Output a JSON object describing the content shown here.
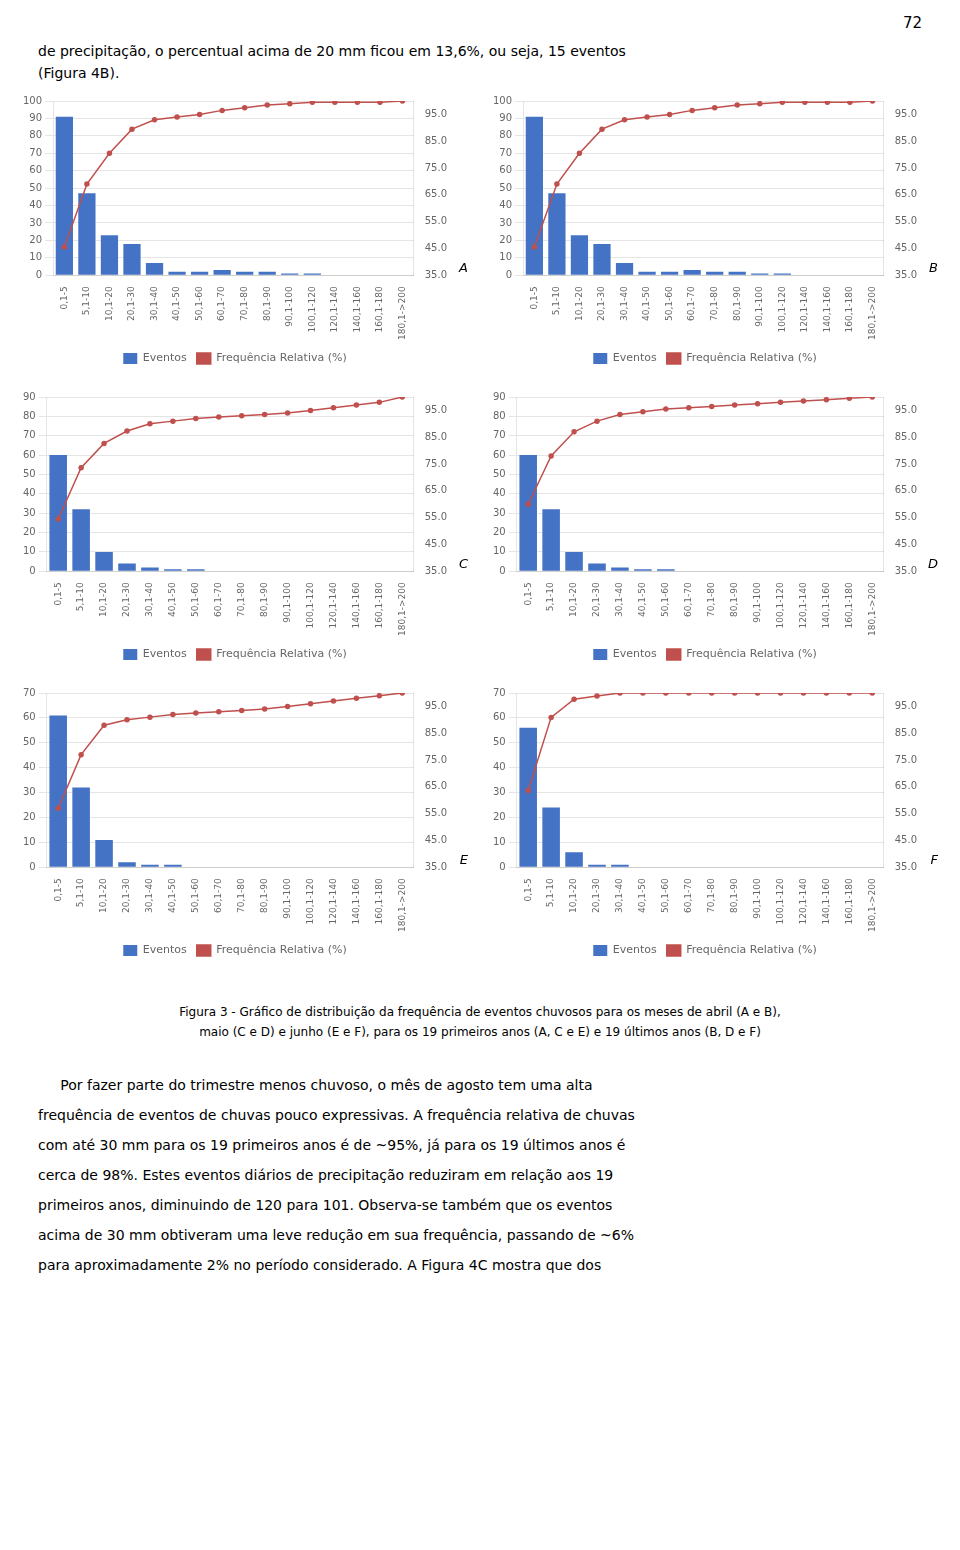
{
  "page_number": "72",
  "text_before": [
    "de precipitação, o percentual acima de 20 mm ficou em 13,6%, ou seja, 15 eventos",
    "(Figura 4B)."
  ],
  "chart_data": [
    {
      "type": "bar",
      "annotations": [
        "A"
      ],
      "categories": [
        "0,1-5",
        "5,1-10",
        "10,1-20",
        "20,1-30",
        "30,1-40",
        "40,1-50",
        "50,1-60",
        "60,1-70",
        "70,1-80",
        "80,1-90",
        "90,1-100",
        "100,1-120",
        "120,1-140",
        "140,1-160",
        "160,1-180",
        "180,1->200"
      ],
      "series": [
        {
          "name": "Eventos",
          "type": "bar",
          "color": "#4472C4",
          "values": [
            91,
            47,
            23,
            18,
            7,
            2,
            2,
            3,
            2,
            2,
            1,
            1,
            0,
            0,
            0,
            0
          ]
        },
        {
          "name": "Frequência Relativa (%)",
          "type": "line",
          "color": "#C0504D",
          "axis": "y2",
          "values": [
            45.5,
            69.0,
            80.5,
            89.5,
            93.0,
            94.0,
            95.0,
            96.5,
            97.5,
            98.5,
            99.0,
            99.5,
            99.5,
            99.5,
            99.5,
            100
          ]
        }
      ],
      "ylim": [
        0,
        100
      ],
      "yticks": [
        0,
        10,
        20,
        30,
        40,
        50,
        60,
        70,
        80,
        90,
        100
      ],
      "y2lim": [
        35,
        100
      ],
      "y2ticks": [
        {
          "value": 35,
          "label": "35.0"
        },
        {
          "value": 45,
          "label": "45.0"
        },
        {
          "value": 55,
          "label": "55.0"
        },
        {
          "value": 65,
          "label": "65.0"
        },
        {
          "value": 75,
          "label": "75.0"
        },
        {
          "value": 85,
          "label": "85.0"
        },
        {
          "value": 95,
          "label": "95.0"
        }
      ],
      "grid": true,
      "legend": "bottom"
    },
    {
      "type": "bar",
      "annotations": [
        "B"
      ],
      "categories": [
        "0,1-5",
        "5,1-10",
        "10,1-20",
        "20,1-30",
        "30,1-40",
        "40,1-50",
        "50,1-60",
        "60,1-70",
        "70,1-80",
        "80,1-90",
        "90,1-100",
        "100,1-120",
        "120,1-140",
        "140,1-160",
        "160,1-180",
        "180,1->200"
      ],
      "series": [
        {
          "name": "Eventos",
          "type": "bar",
          "color": "#4472C4",
          "values": [
            91,
            47,
            23,
            18,
            7,
            2,
            2,
            3,
            2,
            2,
            1,
            1,
            0,
            0,
            0,
            0
          ]
        },
        {
          "name": "Frequência Relativa (%)",
          "type": "line",
          "color": "#C0504D",
          "axis": "y2",
          "values": [
            45.5,
            69.0,
            80.5,
            89.5,
            93.0,
            94.0,
            95.0,
            96.5,
            97.5,
            98.5,
            99.0,
            99.5,
            99.5,
            99.5,
            99.5,
            100
          ]
        }
      ],
      "ylim": [
        0,
        100
      ],
      "yticks": [
        0,
        10,
        20,
        30,
        40,
        50,
        60,
        70,
        80,
        90,
        100
      ],
      "y2lim": [
        35,
        100
      ],
      "y2ticks": [
        {
          "value": 35,
          "label": "35.0"
        },
        {
          "value": 45,
          "label": "45.0"
        },
        {
          "value": 55,
          "label": "55.0"
        },
        {
          "value": 65,
          "label": "65.0"
        },
        {
          "value": 75,
          "label": "75.0"
        },
        {
          "value": 85,
          "label": "85.0"
        },
        {
          "value": 95,
          "label": "95.0"
        }
      ],
      "grid": true,
      "legend": "bottom"
    },
    {
      "type": "bar",
      "annotations": [
        "C"
      ],
      "categories": [
        "0,1-5",
        "5,1-10",
        "10,1-20",
        "20,1-30",
        "30,1-40",
        "40,1-50",
        "50,1-60",
        "60,1-70",
        "70,1-80",
        "80,1-90",
        "90,1-100",
        "100,1-120",
        "120,1-140",
        "140,1-160",
        "160,1-180",
        "180,1->200"
      ],
      "series": [
        {
          "name": "Eventos",
          "type": "bar",
          "color": "#4472C4",
          "values": [
            60,
            32,
            10,
            4,
            2,
            1,
            1,
            0,
            0,
            0,
            0,
            0,
            0,
            0,
            0,
            0
          ]
        },
        {
          "name": "Frequência Relativa (%)",
          "type": "line",
          "color": "#C0504D",
          "axis": "y2",
          "values": [
            54.5,
            73.6,
            82.7,
            87.3,
            90.0,
            91.0,
            92.0,
            92.5,
            93.0,
            93.5,
            94.0,
            95.0,
            96.0,
            97.0,
            98.0,
            100
          ]
        }
      ],
      "ylim": [
        0,
        90
      ],
      "yticks": [
        0,
        10,
        20,
        30,
        40,
        50,
        60,
        70,
        80,
        90
      ],
      "y2lim": [
        35,
        100
      ],
      "y2ticks": [
        {
          "value": 35,
          "label": "35.0"
        },
        {
          "value": 45,
          "label": "45.0"
        },
        {
          "value": 55,
          "label": "55.0"
        },
        {
          "value": 65,
          "label": "65.0"
        },
        {
          "value": 75,
          "label": "75.0"
        },
        {
          "value": 85,
          "label": "85.0"
        },
        {
          "value": 95,
          "label": "95.0"
        }
      ],
      "grid": true,
      "legend": "bottom"
    },
    {
      "type": "bar",
      "annotations": [
        "D"
      ],
      "categories": [
        "0,1-5",
        "5,1-10",
        "10,1-20",
        "20,1-30",
        "30,1-40",
        "40,1-50",
        "50,1-60",
        "60,1-70",
        "70,1-80",
        "80,1-90",
        "90,1-100",
        "100,1-120",
        "120,1-140",
        "140,1-160",
        "160,1-180",
        "180,1->200"
      ],
      "series": [
        {
          "name": "Eventos",
          "type": "bar",
          "color": "#4472C4",
          "values": [
            60,
            32,
            10,
            4,
            2,
            1,
            1,
            0,
            0,
            0,
            0,
            0,
            0,
            0,
            0,
            0
          ]
        },
        {
          "name": "Frequência Relativa (%)",
          "type": "line",
          "color": "#C0504D",
          "axis": "y2",
          "values": [
            60.0,
            78.0,
            87.0,
            91.0,
            93.5,
            94.5,
            95.5,
            96.0,
            96.5,
            97.0,
            97.5,
            98.0,
            98.5,
            99.0,
            99.5,
            100
          ]
        }
      ],
      "ylim": [
        0,
        90
      ],
      "yticks": [
        0,
        10,
        20,
        30,
        40,
        50,
        60,
        70,
        80,
        90
      ],
      "y2lim": [
        35,
        100
      ],
      "y2ticks": [
        {
          "value": 35,
          "label": "35.0"
        },
        {
          "value": 45,
          "label": "45.0"
        },
        {
          "value": 55,
          "label": "55.0"
        },
        {
          "value": 65,
          "label": "65.0"
        },
        {
          "value": 75,
          "label": "75.0"
        },
        {
          "value": 85,
          "label": "85.0"
        },
        {
          "value": 95,
          "label": "95.0"
        }
      ],
      "grid": true,
      "legend": "bottom"
    },
    {
      "type": "bar",
      "annotations": [
        "E"
      ],
      "categories": [
        "0,1-5",
        "5,1-10",
        "10,1-20",
        "20,1-30",
        "30,1-40",
        "40,1-50",
        "50,1-60",
        "60,1-70",
        "70,1-80",
        "80,1-90",
        "90,1-100",
        "100,1-120",
        "120,1-140",
        "140,1-160",
        "160,1-180",
        "180,1->200"
      ],
      "series": [
        {
          "name": "Eventos",
          "type": "bar",
          "color": "#4472C4",
          "values": [
            61,
            32,
            11,
            2,
            1,
            1,
            0,
            0,
            0,
            0,
            0,
            0,
            0,
            0,
            0,
            0
          ]
        },
        {
          "name": "Frequência Relativa (%)",
          "type": "line",
          "color": "#C0504D",
          "axis": "y2",
          "values": [
            57.0,
            77.0,
            88.0,
            90.0,
            91.0,
            92.0,
            92.5,
            93.0,
            93.5,
            94.0,
            95.0,
            96.0,
            97.0,
            98.0,
            99.0,
            100
          ]
        }
      ],
      "ylim": [
        0,
        70
      ],
      "yticks": [
        0,
        10,
        20,
        30,
        40,
        50,
        60,
        70
      ],
      "y2lim": [
        35,
        100
      ],
      "y2ticks": [
        {
          "value": 35,
          "label": "35.0"
        },
        {
          "value": 45,
          "label": "45.0"
        },
        {
          "value": 55,
          "label": "55.0"
        },
        {
          "value": 65,
          "label": "65.0"
        },
        {
          "value": 75,
          "label": "75.0"
        },
        {
          "value": 85,
          "label": "85.0"
        },
        {
          "value": 95,
          "label": "95.0"
        }
      ],
      "grid": true,
      "legend": "bottom"
    },
    {
      "type": "bar",
      "annotations": [
        "F"
      ],
      "categories": [
        "0,1-5",
        "5,1-10",
        "10,1-20",
        "20,1-30",
        "30,1-40",
        "40,1-50",
        "50,1-60",
        "60,1-70",
        "70,1-80",
        "80,1-90",
        "90,1-100",
        "100,1-120",
        "120,1-140",
        "140,1-160",
        "160,1-180",
        "180,1->200"
      ],
      "series": [
        {
          "name": "Eventos",
          "type": "bar",
          "color": "#4472C4",
          "values": [
            56,
            24,
            6,
            1,
            1,
            0,
            0,
            0,
            0,
            0,
            0,
            0,
            0,
            0,
            0,
            0
          ]
        },
        {
          "name": "Frequência Relativa (%)",
          "type": "line",
          "color": "#C0504D",
          "axis": "y2",
          "values": [
            63.6,
            90.9,
            97.7,
            98.9,
            100,
            100,
            100,
            100,
            100,
            100,
            100,
            100,
            100,
            100,
            100,
            100
          ]
        }
      ],
      "ylim": [
        0,
        70
      ],
      "yticks": [
        0,
        10,
        20,
        30,
        40,
        50,
        60,
        70
      ],
      "y2lim": [
        35,
        100
      ],
      "y2ticks": [
        {
          "value": 35,
          "label": "35.0"
        },
        {
          "value": 45,
          "label": "45.0"
        },
        {
          "value": 55,
          "label": "55.0"
        },
        {
          "value": 65,
          "label": "65.0"
        },
        {
          "value": 75,
          "label": "75.0"
        },
        {
          "value": 85,
          "label": "85.0"
        },
        {
          "value": 95,
          "label": "95.0"
        }
      ],
      "grid": true,
      "legend": "bottom"
    }
  ],
  "caption": [
    "Figura 3 - Gráfico de distribuição da frequência de eventos chuvosos para os meses de abril (A e B),",
    "maio (C e D) e junho (E e F), para os 19 primeiros anos (A, C e E) e 19 últimos anos (B, D e F)"
  ],
  "text_after": [
    "     Por fazer parte do trimestre menos chuvoso, o mês de agosto tem uma alta",
    "frequência de eventos de chuvas pouco expressivas. A frequência relativa de chuvas",
    "com até 30 mm para os 19 primeiros anos é de ~95%, já para os 19 últimos anos é",
    "cerca de 98%. Estes eventos diários de precipitação reduziram em relação aos 19",
    "primeiros anos, diminuindo de 120 para 101. Observa-se também que os eventos",
    "acima de 30 mm obtiveram uma leve redução em sua frequência, passando de ~6%",
    "para aproximadamente 2% no período considerado. A Figura 4C mostra que dos"
  ]
}
